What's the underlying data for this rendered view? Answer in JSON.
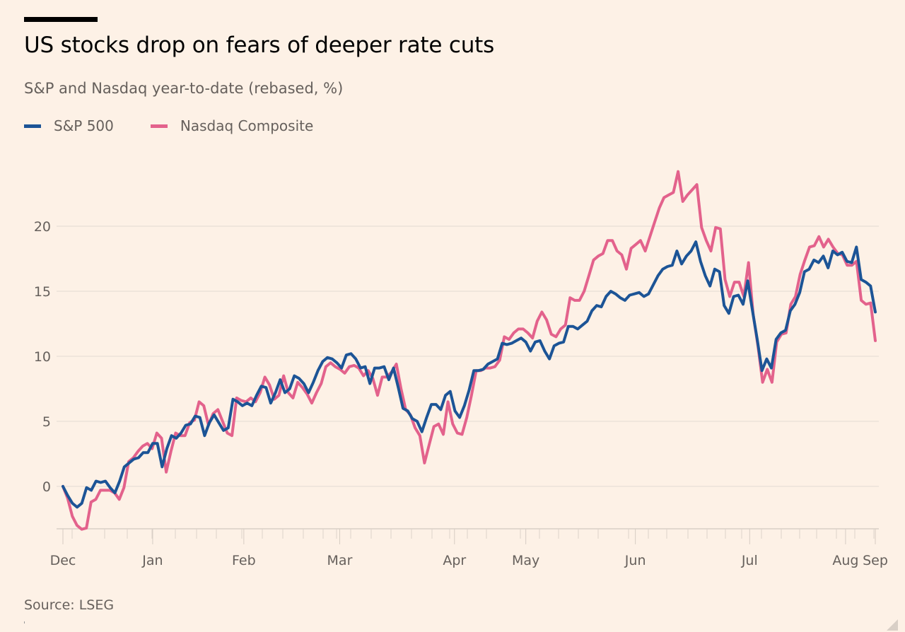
{
  "header": {
    "title": "US stocks drop on fears of deeper rate cuts",
    "subtitle": "S&P and Nasdaq year-to-date (rebased, %)"
  },
  "legend": [
    {
      "label": "S&P 500",
      "color": "#1c5496"
    },
    {
      "label": "Nasdaq Composite",
      "color": "#e3628c"
    }
  ],
  "footer": {
    "source": "Source: LSEG"
  },
  "chart_data": {
    "type": "line",
    "title": "US stocks drop on fears of deeper rate cuts",
    "subtitle": "S&P and Nasdaq year-to-date (rebased, %)",
    "xlabel": "",
    "ylabel": "",
    "x_unit": "trading-day index",
    "x_range": [
      0,
      172
    ],
    "x_ticks": [
      {
        "label": "Dec",
        "at": 0
      },
      {
        "label": "Jan",
        "at": 19
      },
      {
        "label": "Feb",
        "at": 38.3
      },
      {
        "label": "Mar",
        "at": 58.6
      },
      {
        "label": "Apr",
        "at": 82.9
      },
      {
        "label": "May",
        "at": 98
      },
      {
        "label": "Jun",
        "at": 121.2
      },
      {
        "label": "Jul",
        "at": 145.4
      },
      {
        "label": "Aug",
        "at": 165.7
      },
      {
        "label": "Sep",
        "at": 172
      }
    ],
    "y_ticks": [
      0,
      5,
      10,
      15,
      20
    ],
    "ylim": [
      -3.3,
      25
    ],
    "grid": true,
    "legend_position": "top-left",
    "series": [
      {
        "name": "S&P 500",
        "color": "#1c5496",
        "values": [
          0,
          -0.7,
          -1.3,
          -1.6,
          -1.3,
          -0.1,
          -0.3,
          0.4,
          0.3,
          0.4,
          -0.1,
          -0.5,
          0.4,
          1.5,
          1.8,
          2.1,
          2.2,
          2.6,
          2.6,
          3.3,
          3.3,
          1.5,
          2.9,
          3.9,
          3.7,
          4.1,
          4.7,
          4.8,
          5.4,
          5.3,
          3.9,
          4.9,
          5.5,
          4.9,
          4.3,
          4.5,
          6.7,
          6.5,
          6.2,
          6.4,
          6.2,
          7.0,
          7.7,
          7.6,
          6.4,
          7.2,
          8.2,
          7.2,
          7.5,
          8.5,
          8.3,
          7.9,
          7.2,
          8.0,
          8.9,
          9.6,
          9.9,
          9.8,
          9.5,
          9.1,
          10.1,
          10.2,
          9.8,
          9.1,
          9.2,
          7.9,
          9.1,
          9.1,
          9.2,
          8.2,
          9.1,
          7.6,
          6.0,
          5.8,
          5.2,
          5.0,
          4.2,
          5.3,
          6.3,
          6.3,
          5.9,
          7.0,
          7.3,
          5.8,
          5.3,
          6.2,
          7.4,
          8.9,
          8.9,
          9.0,
          9.4,
          9.6,
          9.8,
          11.0,
          10.9,
          11.0,
          11.2,
          11.4,
          11.1,
          10.4,
          11.1,
          11.2,
          10.4,
          9.8,
          10.8,
          11.0,
          11.1,
          12.3,
          12.3,
          12.1,
          12.4,
          12.7,
          13.5,
          13.9,
          13.8,
          14.6,
          15.0,
          14.8,
          14.5,
          14.3,
          14.7,
          14.8,
          14.9,
          14.6,
          14.8,
          15.5,
          16.2,
          16.7,
          16.9,
          17.0,
          18.1,
          17.1,
          17.7,
          18.1,
          18.8,
          17.3,
          16.2,
          15.4,
          16.7,
          16.5,
          13.9,
          13.3,
          14.6,
          14.7,
          14.0,
          15.8,
          13.5,
          11.3,
          8.9,
          9.8,
          9.1,
          11.3,
          11.8,
          12.0,
          13.5,
          14.0,
          14.9,
          16.5,
          16.7,
          17.4,
          17.2,
          17.7,
          16.8,
          18.1,
          17.8,
          18.0,
          17.3,
          17.2,
          18.4,
          15.9,
          15.7,
          15.4,
          13.4
        ]
      },
      {
        "name": "Nasdaq Composite",
        "color": "#e3628c",
        "values": [
          0,
          -0.9,
          -2.3,
          -3.0,
          -3.3,
          -3.2,
          -1.2,
          -1.0,
          -0.3,
          -0.3,
          -0.3,
          -0.5,
          -1.0,
          -0.1,
          1.9,
          2.2,
          2.7,
          3.1,
          3.3,
          2.9,
          4.1,
          3.7,
          1.1,
          2.7,
          4.1,
          3.9,
          3.9,
          4.9,
          5.1,
          6.5,
          6.2,
          4.7,
          5.6,
          5.9,
          5.0,
          4.1,
          3.9,
          6.8,
          6.6,
          6.5,
          6.8,
          6.5,
          7.2,
          8.4,
          7.8,
          6.7,
          7.0,
          8.5,
          7.2,
          6.8,
          8.0,
          7.6,
          7.1,
          6.4,
          7.2,
          7.9,
          9.2,
          9.5,
          9.2,
          9.0,
          8.7,
          9.2,
          9.3,
          9.1,
          8.5,
          8.9,
          8.3,
          7.0,
          8.4,
          8.4,
          8.8,
          9.4,
          7.5,
          5.9,
          5.5,
          4.5,
          3.9,
          1.8,
          3.2,
          4.6,
          4.8,
          4.0,
          6.5,
          4.8,
          4.1,
          4.0,
          5.3,
          7.0,
          8.9,
          8.9,
          9.1,
          9.1,
          9.2,
          9.7,
          11.5,
          11.3,
          11.8,
          12.1,
          12.1,
          11.8,
          11.4,
          12.7,
          13.4,
          12.8,
          11.7,
          11.5,
          12.1,
          12.4,
          14.5,
          14.3,
          14.3,
          15.0,
          16.2,
          17.4,
          17.7,
          17.9,
          18.9,
          18.9,
          18.1,
          17.8,
          16.7,
          18.3,
          18.6,
          18.9,
          18.1,
          19.2,
          20.3,
          21.4,
          22.2,
          22.4,
          22.6,
          24.2,
          21.9,
          22.4,
          22.8,
          23.2,
          19.9,
          18.9,
          18.1,
          19.9,
          19.8,
          15.9,
          14.6,
          15.7,
          15.7,
          14.6,
          17.2,
          13.2,
          10.8,
          8.0,
          9.0,
          8.0,
          11.1,
          11.7,
          11.8,
          14.0,
          14.6,
          16.3,
          17.4,
          18.4,
          18.5,
          19.2,
          18.4,
          19.0,
          18.4,
          17.9,
          17.8,
          17.0,
          17.0,
          17.3,
          14.3,
          14.0,
          14.1,
          11.2
        ]
      }
    ]
  }
}
